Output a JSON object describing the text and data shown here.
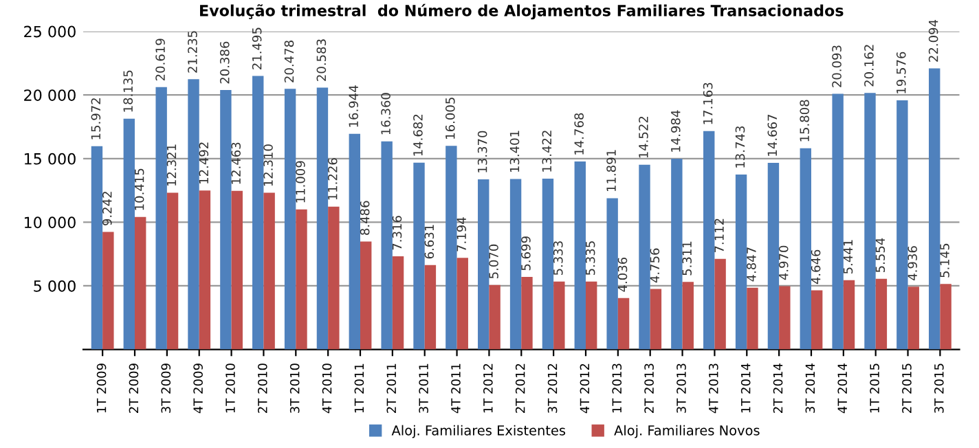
{
  "chart_data": {
    "type": "bar",
    "title": "Evolução trimestral  do Número de Alojamentos Familiares Transacionados",
    "categories": [
      "1T 2009",
      "2T 2009",
      "3T 2009",
      "4T 2009",
      "1T 2010",
      "2T 2010",
      "3T 2010",
      "4T 2010",
      "1T 2011",
      "2T 2011",
      "3T 2011",
      "4T 2011",
      "1T 2012",
      "2T 2012",
      "3T 2012",
      "4T 2012",
      "1T 2013",
      "2T 2013",
      "3T 2013",
      "4T 2013",
      "1T 2014",
      "2T 2014",
      "3T 2014",
      "4T 2014",
      "1T 2015",
      "2T 2015",
      "3T 2015"
    ],
    "series": [
      {
        "name": "Aloj. Familiares Existentes",
        "color": "#4f81bd",
        "values": [
          15972,
          18135,
          20619,
          21235,
          20386,
          21495,
          20478,
          20583,
          16944,
          16360,
          14682,
          16005,
          13370,
          13401,
          13422,
          14768,
          11891,
          14522,
          14984,
          17163,
          13743,
          14667,
          15808,
          20093,
          20162,
          19576,
          22094
        ],
        "value_labels": [
          "15.972",
          "18.135",
          "20.619",
          "21.235",
          "20.386",
          "21.495",
          "20.478",
          "20.583",
          "16.944",
          "16.360",
          "14.682",
          "16.005",
          "13.370",
          "13.401",
          "13.422",
          "14.768",
          "11.891",
          "14.522",
          "14.984",
          "17.163",
          "13.743",
          "14.667",
          "15.808",
          "20.093",
          "20.162",
          "19.576",
          "22.094"
        ]
      },
      {
        "name": "Aloj. Familiares Novos",
        "color": "#c0504d",
        "values": [
          9242,
          10415,
          12321,
          12492,
          12463,
          12310,
          11009,
          11226,
          8486,
          7316,
          6631,
          7194,
          5070,
          5699,
          5333,
          5335,
          4036,
          4756,
          5311,
          7112,
          4847,
          4970,
          4646,
          5441,
          5554,
          4936,
          5145
        ],
        "value_labels": [
          "9.242",
          "10.415",
          "12.321",
          "12.492",
          "12.463",
          "12.310",
          "11.009",
          "11.226",
          "8.486",
          "7.316",
          "6.631",
          "7.194",
          "5.070",
          "5.699",
          "5.333",
          "5.335",
          "4.036",
          "4.756",
          "5.311",
          "7.112",
          "4.847",
          "4.970",
          "4.646",
          "5.441",
          "5.554",
          "4.936",
          "5.145"
        ]
      }
    ],
    "ylim": [
      0,
      25000
    ],
    "yticks": [
      {
        "value": 5000,
        "label": "5 000"
      },
      {
        "value": 10000,
        "label": "10 000"
      },
      {
        "value": 15000,
        "label": "15 000"
      },
      {
        "value": 20000,
        "label": "20 000"
      },
      {
        "value": 25000,
        "label": "25 000"
      }
    ],
    "grid": "y",
    "legend": "bottom"
  }
}
